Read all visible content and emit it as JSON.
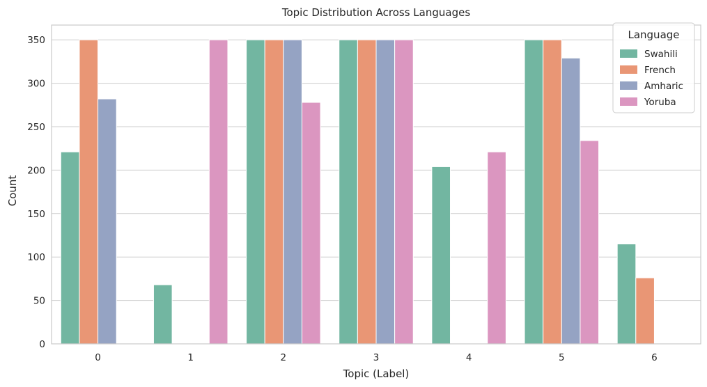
{
  "chart_data": {
    "type": "bar",
    "title": "Topic Distribution Across Languages",
    "xlabel": "Topic (Label)",
    "ylabel": "Count",
    "categories": [
      "0",
      "1",
      "2",
      "3",
      "4",
      "5",
      "6"
    ],
    "yticks": [
      0,
      50,
      100,
      150,
      200,
      250,
      300,
      350
    ],
    "ylim": [
      0,
      367
    ],
    "grid": true,
    "legend": {
      "title": "Language",
      "placement": "top-right"
    },
    "series": [
      {
        "name": "Swahili",
        "color": "#72b6a1",
        "values": [
          221,
          68,
          350,
          350,
          204,
          350,
          115
        ]
      },
      {
        "name": "French",
        "color": "#e99675",
        "values": [
          350,
          0,
          350,
          350,
          0,
          350,
          76
        ]
      },
      {
        "name": "Amharic",
        "color": "#95a3c3",
        "values": [
          282,
          0,
          350,
          350,
          0,
          329,
          0
        ]
      },
      {
        "name": "Yoruba",
        "color": "#db96c0",
        "values": [
          0,
          350,
          278,
          350,
          221,
          234,
          0
        ]
      }
    ]
  }
}
